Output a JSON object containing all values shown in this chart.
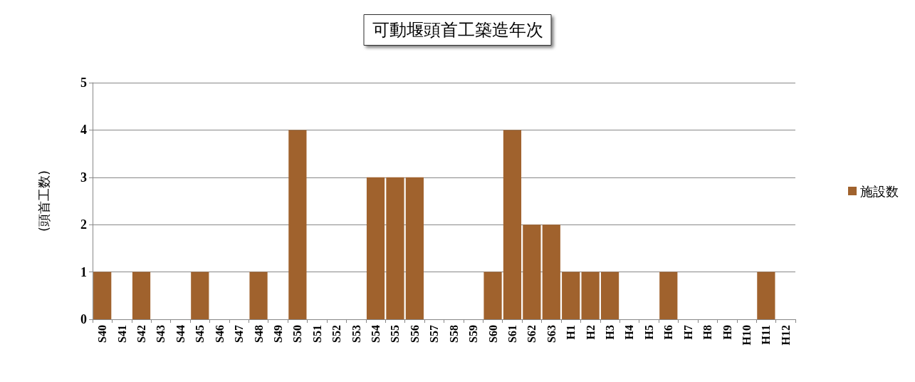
{
  "chart_data": {
    "type": "bar",
    "title": "可動堰頭首工築造年次",
    "ylabel": "(頭首工数)",
    "categories": [
      "S40",
      "S41",
      "S42",
      "S43",
      "S44",
      "S45",
      "S46",
      "S47",
      "S48",
      "S49",
      "S50",
      "S51",
      "S52",
      "S53",
      "S54",
      "S55",
      "S56",
      "S57",
      "S58",
      "S59",
      "S60",
      "S61",
      "S62",
      "S63",
      "H1",
      "H2",
      "H3",
      "H4",
      "H5",
      "H6",
      "H7",
      "H8",
      "H9",
      "H10",
      "H11",
      "H12"
    ],
    "series": [
      {
        "name": "施設数",
        "color": "#a0622d",
        "values": [
          1,
          0,
          1,
          0,
          0,
          1,
          0,
          0,
          1,
          0,
          4,
          0,
          0,
          0,
          3,
          3,
          3,
          0,
          0,
          0,
          1,
          4,
          2,
          2,
          1,
          1,
          1,
          0,
          0,
          1,
          0,
          0,
          0,
          0,
          1,
          0
        ]
      }
    ],
    "ylim": [
      0,
      5
    ],
    "yticks": [
      0,
      1,
      2,
      3,
      4,
      5
    ],
    "grid": "y",
    "legend": "right"
  }
}
